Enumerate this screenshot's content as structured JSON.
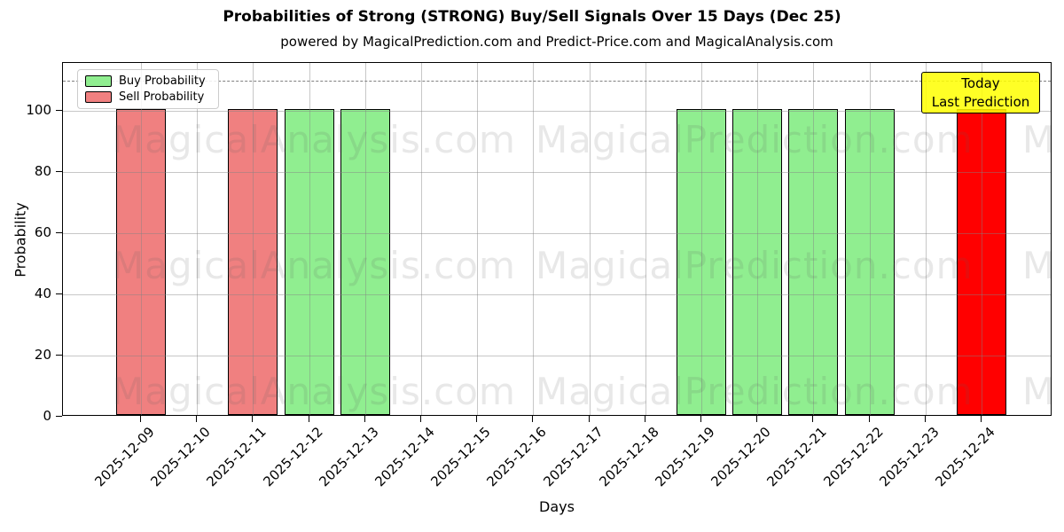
{
  "title": "Probabilities of Strong (STRONG) Buy/Sell Signals Over 15 Days (Dec 25)",
  "subtitle": "powered by MagicalPrediction.com and Predict-Price.com and MagicalAnalysis.com",
  "axes": {
    "xlabel": "Days",
    "ylabel": "Probability",
    "yticks": [
      0,
      20,
      40,
      60,
      80,
      100
    ],
    "dashed_line_y": 110
  },
  "legend": [
    {
      "label": "Buy Probability",
      "color": "#90EE90"
    },
    {
      "label": "Sell Probability",
      "color": "#F08080"
    }
  ],
  "annotation": {
    "line1": "Today",
    "line2": "Last Prediction",
    "bg_color": "#FFFF00"
  },
  "watermarks": {
    "left_text": "MagicalAnalysis.com",
    "right_text": "MagicalPrediction.com"
  },
  "colors": {
    "buy": "#90EE90",
    "sell": "#F08080",
    "today": "#FF0000",
    "bar_edge": "#000000",
    "grid": "#b0b0b0",
    "annotation_bg": "#FFFF00"
  },
  "chart_data": {
    "type": "bar",
    "title": "Probabilities of Strong (STRONG) Buy/Sell Signals Over 15 Days (Dec 25)",
    "xlabel": "Days",
    "ylabel": "Probability",
    "ylim": [
      0,
      116
    ],
    "grid": true,
    "legend_position": "upper left",
    "dashed_reference_line": 110,
    "categories": [
      "2025-12-09",
      "2025-12-10",
      "2025-12-11",
      "2025-12-12",
      "2025-12-13",
      "2025-12-14",
      "2025-12-15",
      "2025-12-16",
      "2025-12-17",
      "2025-12-18",
      "2025-12-19",
      "2025-12-20",
      "2025-12-21",
      "2025-12-22",
      "2025-12-23",
      "2025-12-24"
    ],
    "series": [
      {
        "name": "Buy Probability",
        "color": "#90EE90",
        "values": [
          0,
          0,
          0,
          100,
          100,
          0,
          0,
          0,
          0,
          0,
          100,
          100,
          100,
          100,
          0,
          0
        ]
      },
      {
        "name": "Sell Probability",
        "color": "#F08080",
        "values": [
          100,
          0,
          100,
          0,
          0,
          0,
          0,
          0,
          0,
          0,
          0,
          0,
          0,
          0,
          0,
          0
        ]
      },
      {
        "name": "Today Last Prediction",
        "color": "#FF0000",
        "values": [
          0,
          0,
          0,
          0,
          0,
          0,
          0,
          0,
          0,
          0,
          0,
          0,
          0,
          0,
          0,
          100
        ]
      }
    ]
  }
}
